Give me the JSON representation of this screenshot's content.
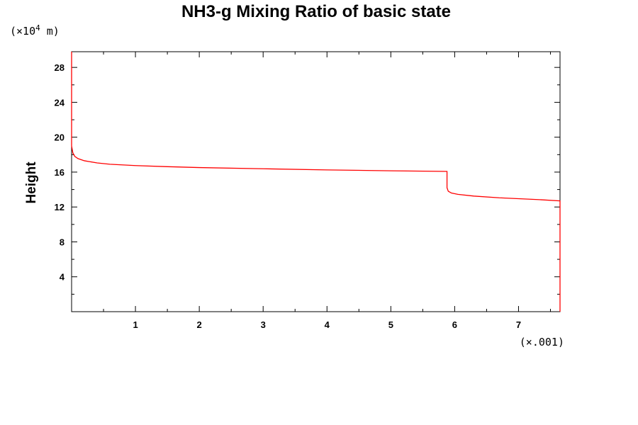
{
  "chart_data": {
    "type": "line",
    "title": "NH3-g Mixing Ratio of basic state",
    "ylabel": "Height",
    "y_multiplier": {
      "prefix": "(×10",
      "exponent": "4",
      "suffix": " m)"
    },
    "x_multiplier": "(×.001)",
    "xlim": [
      0,
      7.65
    ],
    "ylim": [
      0,
      29.8
    ],
    "x_ticks": [
      {
        "value": 1,
        "label": "1"
      },
      {
        "value": 2,
        "label": "2"
      },
      {
        "value": 3,
        "label": "3"
      },
      {
        "value": 4,
        "label": "4"
      },
      {
        "value": 5,
        "label": "5"
      },
      {
        "value": 6,
        "label": "6"
      },
      {
        "value": 7,
        "label": "7"
      }
    ],
    "y_ticks": [
      {
        "value": 4,
        "label": "4"
      },
      {
        "value": 8,
        "label": "8"
      },
      {
        "value": 12,
        "label": "12"
      },
      {
        "value": 16,
        "label": "16"
      },
      {
        "value": 20,
        "label": "20"
      },
      {
        "value": 24,
        "label": "24"
      },
      {
        "value": 28,
        "label": "28"
      }
    ],
    "series": [
      {
        "color": "#ff0000",
        "points": [
          [
            0,
            29.8
          ],
          [
            0,
            19.0
          ],
          [
            0.02,
            18.2
          ],
          [
            0.05,
            17.8
          ],
          [
            0.1,
            17.55
          ],
          [
            0.2,
            17.3
          ],
          [
            0.4,
            17.05
          ],
          [
            0.6,
            16.9
          ],
          [
            1.0,
            16.75
          ],
          [
            1.5,
            16.62
          ],
          [
            2.0,
            16.52
          ],
          [
            3.0,
            16.38
          ],
          [
            4.0,
            16.25
          ],
          [
            5.0,
            16.15
          ],
          [
            5.88,
            16.08
          ],
          [
            5.88,
            14.2
          ],
          [
            5.9,
            13.8
          ],
          [
            5.95,
            13.6
          ],
          [
            6.05,
            13.45
          ],
          [
            6.3,
            13.25
          ],
          [
            6.7,
            13.05
          ],
          [
            7.0,
            12.95
          ],
          [
            7.3,
            12.85
          ],
          [
            7.65,
            12.7
          ],
          [
            7.65,
            0
          ]
        ]
      }
    ]
  }
}
